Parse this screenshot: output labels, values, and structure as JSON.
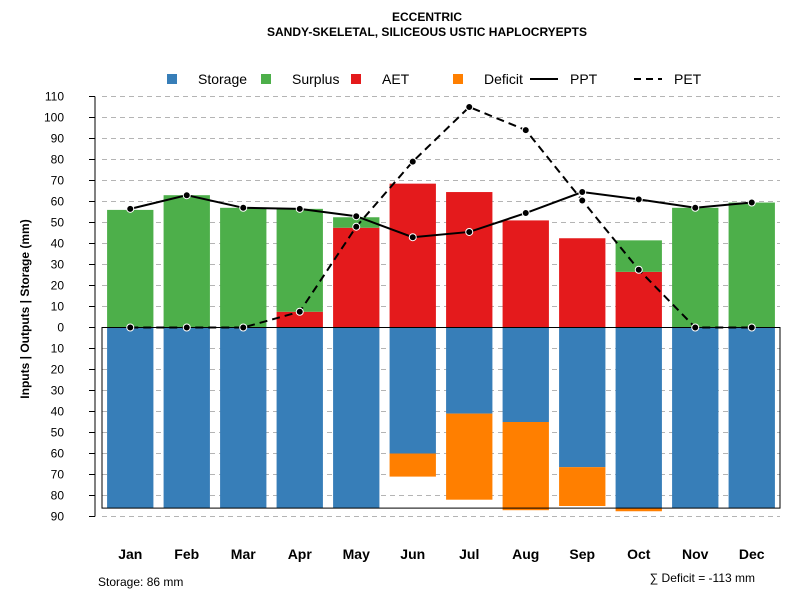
{
  "chart_data": {
    "type": "bar",
    "title": "ECCENTRIC",
    "subtitle": "SANDY-SKELETAL, SILICEOUS USTIC HAPLOCRYEPTS",
    "ylabel": "Inputs | Outputs | Storage    (mm)",
    "ylim": [
      -90,
      110
    ],
    "ytick_values": [
      110,
      100,
      90,
      80,
      70,
      60,
      50,
      40,
      30,
      20,
      10,
      0,
      -10,
      -20,
      -30,
      -40,
      -50,
      -60,
      -70,
      -80,
      -90
    ],
    "ytick_labels": [
      "110",
      "100",
      "90",
      "80",
      "70",
      "60",
      "50",
      "40",
      "30",
      "20",
      "10",
      "0",
      "10",
      "20",
      "30",
      "40",
      "50",
      "60",
      "70",
      "80",
      "90"
    ],
    "categories": [
      "Jan",
      "Feb",
      "Mar",
      "Apr",
      "May",
      "Jun",
      "Jul",
      "Aug",
      "Sep",
      "Oct",
      "Nov",
      "Dec"
    ],
    "legend": [
      {
        "label": "Storage",
        "kind": "box",
        "color": "#377EB8"
      },
      {
        "label": "Surplus",
        "kind": "box",
        "color": "#4DAF4A"
      },
      {
        "label": "AET",
        "kind": "box",
        "color": "#E41A1C"
      },
      {
        "label": "Deficit",
        "kind": "box",
        "color": "#FF7F00"
      },
      {
        "label": "PPT",
        "kind": "line",
        "color": "#000000"
      },
      {
        "label": "PET",
        "kind": "dash",
        "color": "#000000"
      }
    ],
    "series": [
      {
        "name": "AET",
        "color": "#E41A1C",
        "values": [
          0,
          0,
          0,
          7.5,
          47.5,
          68.5,
          64.5,
          51,
          42.5,
          26.5,
          0,
          0
        ]
      },
      {
        "name": "Surplus",
        "color": "#4DAF4A",
        "values": [
          56,
          63,
          57,
          49,
          5,
          0,
          0,
          0,
          0,
          15,
          57,
          59.5
        ]
      },
      {
        "name": "Storage",
        "color": "#377EB8",
        "values": [
          86,
          86,
          86,
          86,
          86,
          60,
          41,
          45,
          66.5,
          86,
          86,
          86
        ]
      },
      {
        "name": "Deficit",
        "color": "#FF7F00",
        "values": [
          0,
          0,
          0,
          0,
          0,
          11,
          41,
          42,
          18.5,
          1.5,
          0,
          0
        ]
      },
      {
        "name": "PPT",
        "color": "#000000",
        "values": [
          56.5,
          63,
          57,
          56.5,
          53,
          43,
          45.5,
          54.5,
          64.5,
          61,
          57,
          59.5
        ]
      },
      {
        "name": "PET",
        "color": "#000000",
        "values": [
          0,
          0,
          0,
          7.5,
          48,
          79,
          105,
          94,
          60.5,
          27.5,
          0,
          0
        ]
      }
    ],
    "storage_capacity": 86,
    "footer_left": "Storage: 86 mm",
    "footer_right": "∑ Deficit = -113 mm"
  }
}
